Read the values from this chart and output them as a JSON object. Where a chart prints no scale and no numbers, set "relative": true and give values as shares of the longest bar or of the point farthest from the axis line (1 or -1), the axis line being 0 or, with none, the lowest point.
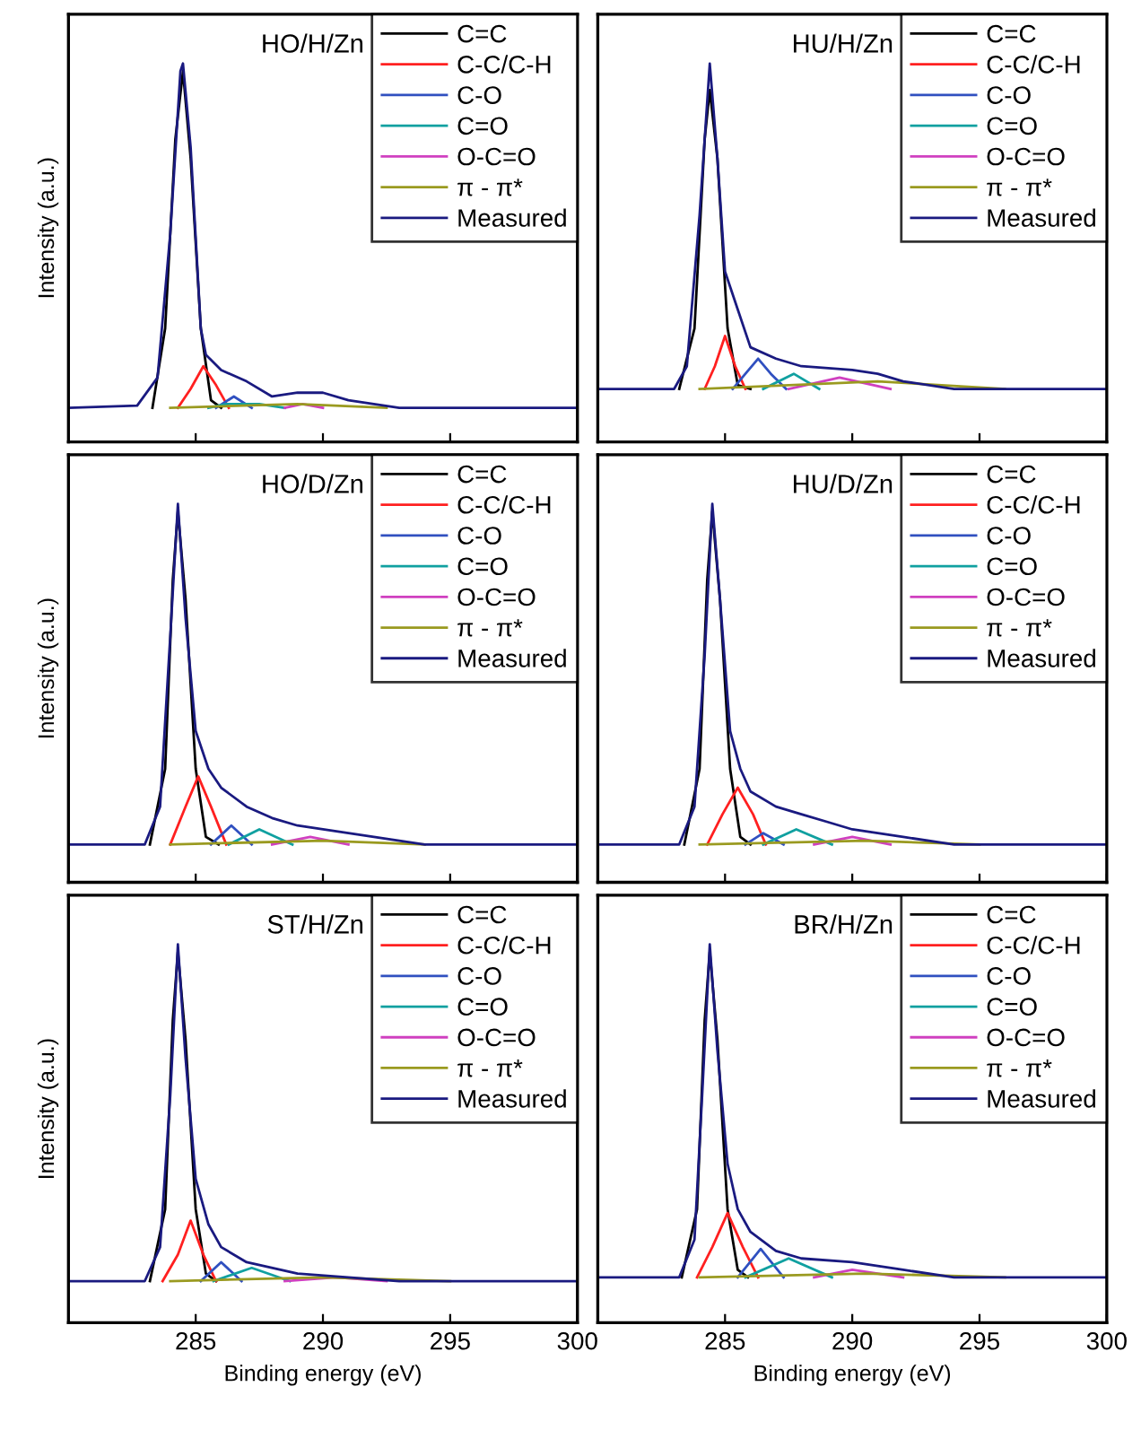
{
  "chart_data": [
    {
      "type": "line",
      "relative": true,
      "annotations": [
        "HO/H/Zn"
      ],
      "ylabel": "Intensity (a.u.)",
      "xlim": [
        280,
        300
      ],
      "xticks": [
        285,
        290,
        295,
        300
      ],
      "tick_labels": false,
      "legend": "top right",
      "series": [
        {
          "name": "C=C",
          "color": "#000000",
          "x": [
            283.3,
            283.8,
            284.2,
            284.5,
            284.8,
            285.2,
            285.6,
            286
          ],
          "values": [
            0.09,
            0.3,
            0.8,
            0.98,
            0.75,
            0.3,
            0.11,
            0.09
          ]
        },
        {
          "name": "C-C/C-H",
          "color": "#ff2020",
          "x": [
            284.3,
            284.8,
            285.3,
            285.8,
            286.3
          ],
          "values": [
            0.09,
            0.14,
            0.2,
            0.15,
            0.09
          ]
        },
        {
          "name": "C-O",
          "color": "#3050c0",
          "x": [
            285.8,
            286.5,
            287.2
          ],
          "values": [
            0.09,
            0.12,
            0.09
          ]
        },
        {
          "name": "C=O",
          "color": "#10a0a0",
          "x": [
            285.5,
            286.2,
            287.5,
            288.5
          ],
          "values": [
            0.09,
            0.1,
            0.1,
            0.09
          ]
        },
        {
          "name": "O-C=O",
          "color": "#d040c0",
          "x": [
            288.5,
            289.2,
            290
          ],
          "values": [
            0.09,
            0.1,
            0.09
          ]
        },
        {
          "name": "π - π*",
          "color": "#9a9a20",
          "x": [
            284,
            289,
            292.5
          ],
          "values": [
            0.09,
            0.1,
            0.09
          ]
        },
        {
          "name": "Measured",
          "color": "#1a1a80",
          "x": [
            280,
            282.7,
            283.5,
            284,
            284.4,
            284.5,
            284.8,
            285.2,
            285.4,
            286,
            287,
            288,
            289,
            290,
            291,
            292,
            293,
            295,
            300
          ],
          "values": [
            0.09,
            0.096,
            0.17,
            0.55,
            0.98,
            1,
            0.78,
            0.3,
            0.23,
            0.19,
            0.16,
            0.12,
            0.13,
            0.13,
            0.11,
            0.1,
            0.09,
            0.09,
            0.09
          ]
        }
      ]
    },
    {
      "type": "line",
      "relative": true,
      "annotations": [
        "HU/H/Zn"
      ],
      "xlim": [
        280,
        300
      ],
      "xticks": [
        285,
        290,
        295,
        300
      ],
      "tick_labels": false,
      "legend": "top right",
      "series": [
        {
          "name": "C=C",
          "color": "#000000",
          "x": [
            283.2,
            283.8,
            284.2,
            284.4,
            284.7,
            285.1,
            285.5,
            286
          ],
          "values": [
            0.14,
            0.3,
            0.8,
            0.93,
            0.75,
            0.3,
            0.15,
            0.14
          ]
        },
        {
          "name": "C-C/C-H",
          "color": "#ff2020",
          "x": [
            284.2,
            284.6,
            285,
            285.4,
            285.8
          ],
          "values": [
            0.14,
            0.2,
            0.28,
            0.2,
            0.14
          ]
        },
        {
          "name": "C-O",
          "color": "#3050c0",
          "x": [
            285.3,
            285.8,
            286.3,
            286.8,
            287.4
          ],
          "values": [
            0.14,
            0.18,
            0.22,
            0.18,
            0.14
          ]
        },
        {
          "name": "C=O",
          "color": "#10a0a0",
          "x": [
            286.5,
            287.7,
            288.7
          ],
          "values": [
            0.14,
            0.18,
            0.14
          ]
        },
        {
          "name": "O-C=O",
          "color": "#d040c0",
          "x": [
            287.5,
            289.5,
            291.5
          ],
          "values": [
            0.14,
            0.17,
            0.14
          ]
        },
        {
          "name": "π - π*",
          "color": "#9a9a20",
          "x": [
            284,
            291,
            296
          ],
          "values": [
            0.14,
            0.16,
            0.14
          ]
        },
        {
          "name": "Measured",
          "color": "#1a1a80",
          "x": [
            280,
            283,
            283.5,
            284,
            284.4,
            284.7,
            285,
            285.5,
            286,
            287,
            288,
            290,
            291,
            292,
            294,
            300
          ],
          "values": [
            0.14,
            0.14,
            0.2,
            0.6,
            1,
            0.75,
            0.45,
            0.35,
            0.25,
            0.22,
            0.2,
            0.19,
            0.18,
            0.16,
            0.14,
            0.14
          ]
        }
      ]
    },
    {
      "type": "line",
      "relative": true,
      "annotations": [
        "HO/D/Zn"
      ],
      "ylabel": "Intensity (a.u.)",
      "xlim": [
        280,
        300
      ],
      "xticks": [
        285,
        290,
        295,
        300
      ],
      "tick_labels": false,
      "legend": "top right",
      "series": [
        {
          "name": "C=C",
          "color": "#000000",
          "x": [
            283.2,
            283.8,
            284.1,
            284.3,
            284.6,
            285,
            285.4,
            285.9
          ],
          "values": [
            0.1,
            0.3,
            0.8,
            0.98,
            0.75,
            0.3,
            0.12,
            0.1
          ]
        },
        {
          "name": "C-C/C-H",
          "color": "#ff2020",
          "x": [
            284,
            284.6,
            285.1,
            285.6,
            286.2
          ],
          "values": [
            0.1,
            0.2,
            0.28,
            0.2,
            0.1
          ]
        },
        {
          "name": "C-O",
          "color": "#3050c0",
          "x": [
            285.6,
            286.4,
            287.2
          ],
          "values": [
            0.1,
            0.15,
            0.1
          ]
        },
        {
          "name": "C=O",
          "color": "#10a0a0",
          "x": [
            286.3,
            287.5,
            288.8
          ],
          "values": [
            0.1,
            0.14,
            0.1
          ]
        },
        {
          "name": "O-C=O",
          "color": "#d040c0",
          "x": [
            288,
            289.5,
            291
          ],
          "values": [
            0.1,
            0.12,
            0.1
          ]
        },
        {
          "name": "π - π*",
          "color": "#9a9a20",
          "x": [
            284,
            290,
            294
          ],
          "values": [
            0.1,
            0.11,
            0.1
          ]
        },
        {
          "name": "Measured",
          "color": "#1a1a80",
          "x": [
            280,
            283,
            283.6,
            284,
            284.3,
            284.6,
            285,
            285.5,
            286,
            287,
            288,
            289,
            290,
            292,
            294,
            300
          ],
          "values": [
            0.1,
            0.1,
            0.2,
            0.65,
            1,
            0.7,
            0.4,
            0.3,
            0.25,
            0.2,
            0.17,
            0.15,
            0.14,
            0.12,
            0.1,
            0.1
          ]
        }
      ]
    },
    {
      "type": "line",
      "relative": true,
      "annotations": [
        "HU/D/Zn"
      ],
      "xlim": [
        280,
        300
      ],
      "xticks": [
        285,
        290,
        295,
        300
      ],
      "tick_labels": false,
      "legend": "top right",
      "series": [
        {
          "name": "C=C",
          "color": "#000000",
          "x": [
            283.4,
            284,
            284.3,
            284.5,
            284.8,
            285.2,
            285.6,
            286
          ],
          "values": [
            0.1,
            0.3,
            0.8,
            0.98,
            0.75,
            0.3,
            0.12,
            0.1
          ]
        },
        {
          "name": "C-C/C-H",
          "color": "#ff2020",
          "x": [
            284.3,
            284.9,
            285.5,
            286.1,
            286.6
          ],
          "values": [
            0.1,
            0.18,
            0.25,
            0.18,
            0.1
          ]
        },
        {
          "name": "C-O",
          "color": "#3050c0",
          "x": [
            285.8,
            286.5,
            287.3
          ],
          "values": [
            0.1,
            0.13,
            0.1
          ]
        },
        {
          "name": "C=O",
          "color": "#10a0a0",
          "x": [
            286.5,
            287.8,
            289.2
          ],
          "values": [
            0.1,
            0.14,
            0.1
          ]
        },
        {
          "name": "O-C=O",
          "color": "#d040c0",
          "x": [
            288.5,
            290,
            291.5
          ],
          "values": [
            0.1,
            0.12,
            0.1
          ]
        },
        {
          "name": "π - π*",
          "color": "#9a9a20",
          "x": [
            284,
            290.5,
            295
          ],
          "values": [
            0.1,
            0.11,
            0.1
          ]
        },
        {
          "name": "Measured",
          "color": "#1a1a80",
          "x": [
            280,
            283.2,
            283.8,
            284.2,
            284.5,
            284.8,
            285.2,
            285.6,
            286,
            287,
            288,
            289,
            290,
            292,
            294,
            300
          ],
          "values": [
            0.1,
            0.1,
            0.2,
            0.6,
            1,
            0.75,
            0.4,
            0.3,
            0.24,
            0.2,
            0.18,
            0.16,
            0.14,
            0.12,
            0.1,
            0.1
          ]
        }
      ]
    },
    {
      "type": "line",
      "relative": true,
      "annotations": [
        "ST/H/Zn"
      ],
      "ylabel": "Intensity (a.u.)",
      "xlabel": "Binding energy (eV)",
      "xlim": [
        280,
        300
      ],
      "xticks": [
        285,
        290,
        295,
        300
      ],
      "tick_labels": "x",
      "legend": "top right",
      "series": [
        {
          "name": "C=C",
          "color": "#000000",
          "x": [
            283.2,
            283.8,
            284.1,
            284.3,
            284.6,
            285,
            285.4,
            285.8
          ],
          "values": [
            0.11,
            0.3,
            0.8,
            0.98,
            0.75,
            0.3,
            0.13,
            0.11
          ]
        },
        {
          "name": "C-C/C-H",
          "color": "#ff2020",
          "x": [
            283.7,
            284.3,
            284.8,
            285.3,
            285.8
          ],
          "values": [
            0.11,
            0.18,
            0.27,
            0.18,
            0.11
          ]
        },
        {
          "name": "C-O",
          "color": "#3050c0",
          "x": [
            285.2,
            286,
            286.8
          ],
          "values": [
            0.11,
            0.16,
            0.11
          ]
        },
        {
          "name": "C=O",
          "color": "#10a0a0",
          "x": [
            285.7,
            287.2,
            288.7
          ],
          "values": [
            0.11,
            0.145,
            0.11
          ]
        },
        {
          "name": "O-C=O",
          "color": "#d040c0",
          "x": [
            288.5,
            290.5,
            292.5
          ],
          "values": [
            0.11,
            0.12,
            0.11
          ]
        },
        {
          "name": "π - π*",
          "color": "#9a9a20",
          "x": [
            284,
            290,
            295
          ],
          "values": [
            0.11,
            0.12,
            0.11
          ]
        },
        {
          "name": "Measured",
          "color": "#1a1a80",
          "x": [
            280,
            283,
            283.6,
            284,
            284.3,
            284.6,
            285,
            285.5,
            286,
            287,
            289,
            291,
            293,
            300
          ],
          "values": [
            0.11,
            0.11,
            0.2,
            0.6,
            1,
            0.7,
            0.38,
            0.26,
            0.2,
            0.16,
            0.13,
            0.12,
            0.11,
            0.11
          ]
        }
      ]
    },
    {
      "type": "line",
      "relative": true,
      "annotations": [
        "BR/H/Zn"
      ],
      "xlabel": "Binding energy (eV)",
      "xlim": [
        280,
        300
      ],
      "xticks": [
        285,
        290,
        295,
        300
      ],
      "tick_labels": "x",
      "legend": "top right",
      "series": [
        {
          "name": "C=C",
          "color": "#000000",
          "x": [
            283.3,
            283.9,
            284.2,
            284.4,
            284.7,
            285.1,
            285.5,
            285.9
          ],
          "values": [
            0.12,
            0.3,
            0.8,
            0.98,
            0.75,
            0.3,
            0.14,
            0.12
          ]
        },
        {
          "name": "C-C/C-H",
          "color": "#ff2020",
          "x": [
            283.9,
            284.5,
            285.1,
            285.7,
            286.3
          ],
          "values": [
            0.12,
            0.2,
            0.29,
            0.2,
            0.12
          ]
        },
        {
          "name": "C-O",
          "color": "#3050c0",
          "x": [
            285.5,
            286.4,
            287.3
          ],
          "values": [
            0.12,
            0.195,
            0.12
          ]
        },
        {
          "name": "C=O",
          "color": "#10a0a0",
          "x": [
            285.8,
            287.5,
            289.2
          ],
          "values": [
            0.12,
            0.17,
            0.12
          ]
        },
        {
          "name": "O-C=O",
          "color": "#d040c0",
          "x": [
            288.5,
            290,
            292
          ],
          "values": [
            0.12,
            0.14,
            0.12
          ]
        },
        {
          "name": "π - π*",
          "color": "#9a9a20",
          "x": [
            284,
            290.5,
            296
          ],
          "values": [
            0.12,
            0.13,
            0.12
          ]
        },
        {
          "name": "Measured",
          "color": "#1a1a80",
          "x": [
            280,
            283.2,
            283.8,
            284.1,
            284.4,
            284.7,
            285.1,
            285.5,
            286,
            287,
            288,
            290,
            292,
            294,
            300
          ],
          "values": [
            0.12,
            0.12,
            0.22,
            0.6,
            1,
            0.72,
            0.42,
            0.3,
            0.24,
            0.19,
            0.17,
            0.16,
            0.14,
            0.12,
            0.12
          ]
        }
      ]
    }
  ]
}
